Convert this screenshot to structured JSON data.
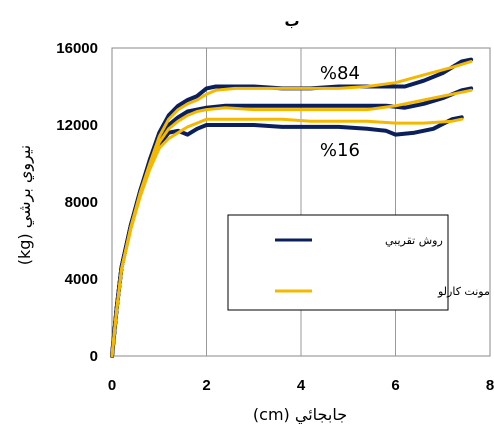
{
  "chart_data": {
    "type": "line",
    "title": "ب",
    "xlabel": "جابجائي (cm)",
    "ylabel": "نيروي برشي (kg)",
    "xlim": [
      0,
      8
    ],
    "ylim": [
      0,
      16000
    ],
    "x_ticks": [
      "0",
      "2",
      "4",
      "6",
      "8"
    ],
    "y_ticks": [
      "0",
      "4000",
      "8000",
      "12000",
      "16000"
    ],
    "grid": "vertical",
    "legend_position": "center-right",
    "annotations": [
      {
        "text": "%84",
        "x": 4.4,
        "y": 14400
      },
      {
        "text": "%16",
        "x": 4.4,
        "y": 10400
      }
    ],
    "series": [
      {
        "name": "روش تقريبي",
        "color": "#0b1f5c",
        "lines": [
          {
            "x": [
              0,
              0.1,
              0.2,
              0.4,
              0.6,
              0.8,
              1.0,
              1.2,
              1.4,
              1.6,
              1.8,
              2.0,
              2.2,
              2.6,
              3.0,
              3.6,
              4.2,
              4.8,
              5.4,
              5.8,
              6.2,
              6.6,
              7.0,
              7.4,
              7.6
            ],
            "y": [
              0,
              2500,
              4600,
              6800,
              8600,
              10200,
              11600,
              12500,
              13000,
              13300,
              13500,
              13900,
              14000,
              14000,
              14000,
              13900,
              13900,
              14000,
              14000,
              14000,
              14000,
              14300,
              14700,
              15300,
              15400
            ]
          },
          {
            "x": [
              0,
              0.1,
              0.2,
              0.4,
              0.6,
              0.8,
              1.0,
              1.2,
              1.4,
              1.6,
              1.8,
              2.0,
              2.4,
              3.0,
              3.6,
              4.2,
              4.8,
              5.4,
              5.8,
              6.2,
              6.6,
              7.0,
              7.4,
              7.6
            ],
            "y": [
              0,
              2500,
              4600,
              6800,
              8600,
              10000,
              11300,
              12000,
              12400,
              12700,
              12800,
              12900,
              13000,
              13000,
              13000,
              13000,
              13000,
              13000,
              13000,
              12900,
              13100,
              13400,
              13800,
              13900
            ]
          },
          {
            "x": [
              0,
              0.1,
              0.2,
              0.4,
              0.6,
              0.8,
              1.0,
              1.2,
              1.4,
              1.6,
              1.8,
              2.0,
              2.4,
              3.0,
              3.6,
              4.2,
              4.8,
              5.4,
              5.8,
              6.0,
              6.4,
              6.8,
              7.2,
              7.4
            ],
            "y": [
              0,
              2500,
              4600,
              6800,
              8500,
              9900,
              11000,
              11600,
              11700,
              11500,
              11800,
              12000,
              12000,
              12000,
              11900,
              11900,
              11900,
              11800,
              11700,
              11500,
              11600,
              11800,
              12300,
              12400
            ]
          }
        ]
      },
      {
        "name": "شبيه سازي مونت كارلو",
        "color": "#f5b800",
        "lines": [
          {
            "x": [
              0,
              0.1,
              0.2,
              0.4,
              0.6,
              0.8,
              1.0,
              1.2,
              1.4,
              1.6,
              1.8,
              2.0,
              2.2,
              2.6,
              3.0,
              3.6,
              4.2,
              4.8,
              5.4,
              6.0,
              6.6,
              7.2,
              7.6
            ],
            "y": [
              0,
              2400,
              4500,
              6700,
              8500,
              10000,
              11400,
              12300,
              12800,
              13100,
              13300,
              13600,
              13800,
              13900,
              13900,
              13900,
              13900,
              13900,
              14000,
              14200,
              14600,
              15000,
              15300
            ]
          },
          {
            "x": [
              0,
              0.1,
              0.2,
              0.4,
              0.6,
              0.8,
              1.0,
              1.2,
              1.4,
              1.6,
              1.8,
              2.0,
              2.4,
              3.0,
              3.6,
              4.2,
              4.8,
              5.4,
              6.0,
              6.6,
              7.2,
              7.6
            ],
            "y": [
              0,
              2400,
              4500,
              6700,
              8400,
              9900,
              11100,
              11800,
              12200,
              12500,
              12700,
              12800,
              12900,
              12800,
              12800,
              12800,
              12800,
              12800,
              13000,
              13300,
              13600,
              13800
            ]
          },
          {
            "x": [
              0,
              0.1,
              0.2,
              0.4,
              0.6,
              0.8,
              1.0,
              1.2,
              1.4,
              1.6,
              1.8,
              2.0,
              2.4,
              3.0,
              3.6,
              4.2,
              4.8,
              5.4,
              6.0,
              6.6,
              7.2,
              7.4
            ],
            "y": [
              0,
              2400,
              4500,
              6600,
              8300,
              9700,
              10800,
              11300,
              11600,
              11900,
              12100,
              12300,
              12300,
              12300,
              12300,
              12200,
              12200,
              12200,
              12100,
              12100,
              12200,
              12300
            ]
          }
        ]
      }
    ]
  }
}
